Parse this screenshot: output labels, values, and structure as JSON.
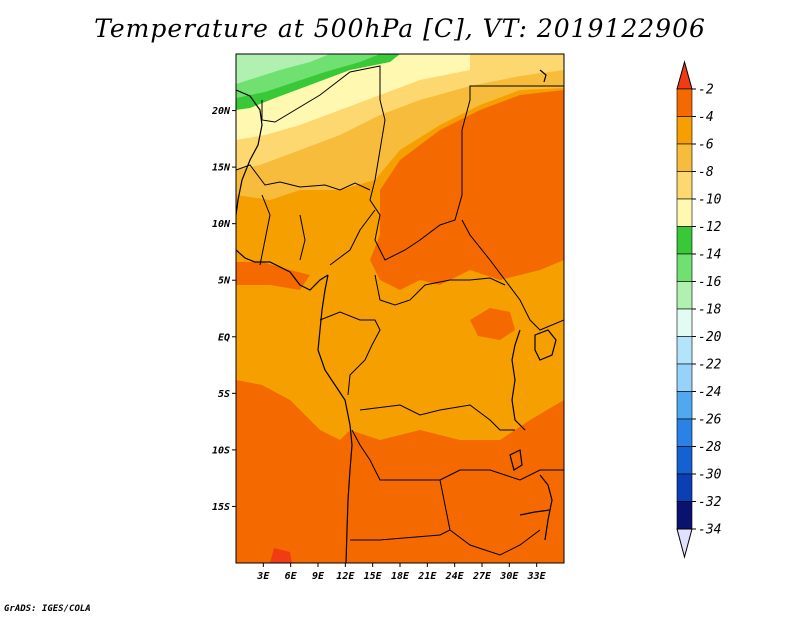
{
  "title": "Temperature at 500hPa [C], VT: 2019122906",
  "credit": "GrADS: IGES/COLA",
  "map": {
    "lon_range": [
      0,
      36
    ],
    "lat_range": [
      -20,
      25
    ],
    "lat_ticks": [
      {
        "value": 20,
        "label": "20N"
      },
      {
        "value": 15,
        "label": "15N"
      },
      {
        "value": 10,
        "label": "10N"
      },
      {
        "value": 5,
        "label": "5N"
      },
      {
        "value": 0,
        "label": "EQ"
      },
      {
        "value": -5,
        "label": "5S"
      },
      {
        "value": -10,
        "label": "10S"
      },
      {
        "value": -15,
        "label": "15S"
      }
    ],
    "lon_ticks": [
      {
        "value": 3,
        "label": "3E"
      },
      {
        "value": 6,
        "label": "6E"
      },
      {
        "value": 9,
        "label": "9E"
      },
      {
        "value": 12,
        "label": "12E"
      },
      {
        "value": 15,
        "label": "15E"
      },
      {
        "value": 18,
        "label": "18E"
      },
      {
        "value": 21,
        "label": "21E"
      },
      {
        "value": 24,
        "label": "24E"
      },
      {
        "value": 27,
        "label": "27E"
      },
      {
        "value": 30,
        "label": "30E"
      },
      {
        "value": 33,
        "label": "33E"
      }
    ]
  },
  "colorbar": {
    "levels": [
      "-2",
      "-4",
      "-6",
      "-8",
      "-10",
      "-12",
      "-14",
      "-16",
      "-18",
      "-20",
      "-22",
      "-24",
      "-26",
      "-28",
      "-30",
      "-32",
      "-34"
    ],
    "colors": [
      "#f03c14",
      "#f46a00",
      "#f5a000",
      "#f8bc3c",
      "#fdd870",
      "#fff8b0",
      "#38c838",
      "#70e070",
      "#b0f0b0",
      "#e2fcf4",
      "#b4e4fc",
      "#96d2fa",
      "#50a8f0",
      "#2a82e6",
      "#1462d2",
      "#0a40b4",
      "#0a1270",
      "#e0e0ff"
    ]
  },
  "field_colors": {
    "warm_max": "#f03c14",
    "warm": "#f46a00",
    "mid": "#f5a000",
    "cool1": "#f8bc3c",
    "cool2": "#fdd870",
    "cool3": "#fff8b0",
    "green1": "#38c838",
    "green2": "#70e070",
    "green3": "#b0f0b0"
  }
}
